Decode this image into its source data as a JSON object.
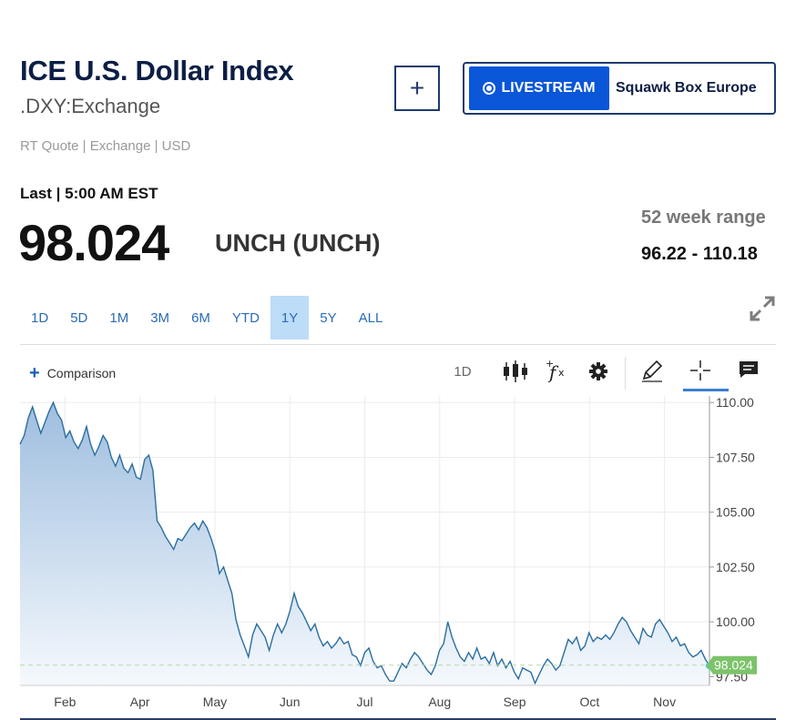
{
  "header": {
    "title": "ICE U.S. Dollar Index",
    "symbol": ".DXY:Exchange",
    "quote_meta": "RT Quote | Exchange | USD"
  },
  "livestream": {
    "button_label": "LIVESTREAM",
    "show_name": "Squawk Box Europe",
    "add_label": "+"
  },
  "quote": {
    "last_label": "Last | 5:00 AM EST",
    "price": "98.024",
    "change": "UNCH (UNCH)",
    "range_label": "52 week range",
    "range_value": "96.22 - 110.18"
  },
  "tabs": [
    "1D",
    "5D",
    "1M",
    "3M",
    "6M",
    "YTD",
    "1Y",
    "5Y",
    "ALL"
  ],
  "active_tab": "1Y",
  "toolbar": {
    "comparison_label": "Comparison",
    "interval_label": "1D",
    "icons": [
      "candlestick-icon",
      "function-icon",
      "gear-icon",
      "pencil-icon",
      "crosshair-icon",
      "comment-icon"
    ]
  },
  "chart_data": {
    "type": "area",
    "title": "",
    "xlabel": "",
    "ylabel": "",
    "x_ticks": [
      "Feb",
      "Apr",
      "May",
      "Jun",
      "Jul",
      "Aug",
      "Sep",
      "Oct",
      "Nov"
    ],
    "y_ticks": [
      "110.00",
      "107.50",
      "105.00",
      "102.50",
      "100.00",
      "97.50"
    ],
    "ylim": [
      97.1,
      110.3
    ],
    "last_value_label": "98.024",
    "last_value": 98.024,
    "colors": {
      "line": "#2a6ea0",
      "fill_top": "#9fbedf",
      "fill_bottom": "#f5f9fd",
      "last_badge": "#7cc36a"
    },
    "series": [
      {
        "values": [
          108.1,
          108.5,
          109.3,
          109.8,
          109.2,
          108.6,
          109.1,
          109.6,
          110.0,
          109.5,
          109.2,
          108.4,
          108.7,
          108.2,
          107.9,
          108.3,
          108.9,
          108.1,
          107.6,
          108.0,
          108.5,
          108.2,
          107.5,
          107.1,
          107.6,
          107.0,
          106.8,
          107.2,
          106.6,
          106.5,
          107.4,
          107.6,
          106.9,
          104.6,
          104.3,
          103.9,
          103.6,
          103.3,
          103.8,
          103.7,
          104.0,
          104.3,
          104.5,
          104.2,
          104.6,
          104.3,
          103.8,
          103.2,
          102.2,
          102.5,
          101.9,
          101.3,
          100.1,
          99.4,
          98.9,
          98.4,
          99.4,
          99.9,
          99.6,
          99.3,
          98.7,
          99.4,
          99.9,
          99.5,
          99.9,
          100.5,
          101.3,
          100.7,
          100.4,
          100.0,
          99.6,
          99.9,
          99.3,
          98.9,
          99.1,
          98.8,
          99.0,
          99.3,
          99.0,
          99.1,
          98.5,
          98.4,
          98.0,
          98.6,
          98.8,
          98.2,
          97.9,
          98.0,
          97.6,
          97.3,
          97.3,
          97.7,
          98.1,
          97.9,
          98.3,
          98.6,
          98.4,
          98.1,
          97.8,
          97.6,
          98.0,
          98.7,
          99.0,
          100.0,
          99.3,
          98.8,
          98.4,
          98.2,
          98.6,
          98.3,
          98.8,
          98.3,
          98.4,
          98.1,
          98.6,
          98.0,
          98.3,
          97.9,
          98.2,
          97.7,
          97.4,
          97.9,
          97.8,
          97.7,
          97.2,
          97.6,
          98.0,
          98.3,
          98.1,
          97.8,
          98.0,
          98.6,
          99.2,
          99.0,
          99.3,
          98.7,
          98.9,
          99.5,
          99.1,
          99.3,
          99.2,
          99.4,
          99.2,
          99.5,
          99.9,
          100.2,
          100.0,
          99.6,
          99.3,
          99.0,
          99.7,
          99.4,
          99.3,
          99.9,
          100.1,
          99.8,
          99.5,
          99.1,
          99.3,
          98.9,
          99.0,
          98.6,
          98.4,
          98.5,
          98.7,
          98.3,
          98.0
        ]
      }
    ]
  }
}
